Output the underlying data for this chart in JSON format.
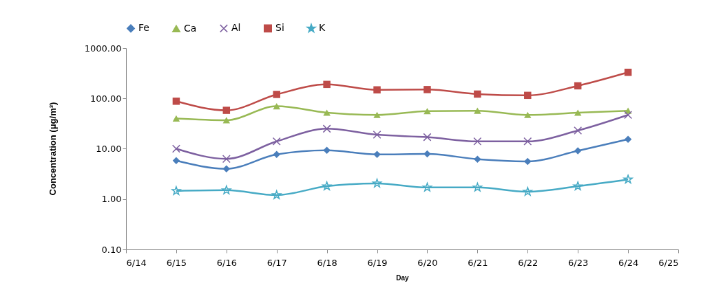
{
  "chart_data": {
    "type": "line",
    "xlabel": "Day",
    "ylabel": "Concentration (μg/m³)",
    "log": true,
    "grid": false,
    "legend": "top",
    "x": [
      "--06-15",
      "--06-16",
      "--06-17",
      "--06-18",
      "--06-19",
      "--06-20",
      "--06-21",
      "--06-22",
      "--06-23",
      "--06-24"
    ],
    "xlim": [
      "--06-14",
      "--06-25"
    ],
    "xticks": [
      {
        "value": "--06-14",
        "label": "6/14"
      },
      {
        "value": "--06-15",
        "label": "6/15"
      },
      {
        "value": "--06-16",
        "label": "6/16"
      },
      {
        "value": "--06-17",
        "label": "6/17"
      },
      {
        "value": "--06-18",
        "label": "6/18"
      },
      {
        "value": "--06-19",
        "label": "6/19"
      },
      {
        "value": "--06-20",
        "label": "6/20"
      },
      {
        "value": "--06-21",
        "label": "6/21"
      },
      {
        "value": "--06-22",
        "label": "6/22"
      },
      {
        "value": "--06-23",
        "label": "6/23"
      },
      {
        "value": "--06-24",
        "label": "6/24"
      },
      {
        "value": "--06-25",
        "label": "6/25"
      }
    ],
    "ylim": [
      0.1,
      1000
    ],
    "yticks": [
      {
        "value": 0.1,
        "label": "0.10"
      },
      {
        "value": 1,
        "label": "1.00"
      },
      {
        "value": 10,
        "label": "10.00"
      },
      {
        "value": 100,
        "label": "100.00"
      },
      {
        "value": 1000,
        "label": "1000.00"
      }
    ],
    "series": [
      {
        "name": "Fe",
        "color": "#4a7ebb",
        "marker": "diamond",
        "values": [
          5.8,
          4.0,
          7.7,
          9.3,
          7.7,
          7.9,
          6.2,
          5.6,
          9.1,
          15.4
        ]
      },
      {
        "name": "Ca",
        "color": "#98b954",
        "marker": "triangle",
        "values": [
          40,
          37,
          70,
          52,
          47,
          56,
          57,
          47,
          52,
          57
        ]
      },
      {
        "name": "Al",
        "color": "#7d60a0",
        "marker": "cross",
        "values": [
          10,
          6.3,
          14,
          25,
          19,
          17,
          14,
          14,
          23,
          47
        ]
      },
      {
        "name": "Si",
        "color": "#be4b48",
        "marker": "square",
        "values": [
          88,
          58,
          120,
          190,
          148,
          150,
          122,
          115,
          178,
          330
        ]
      },
      {
        "name": "K",
        "color": "#46aac5",
        "marker": "star",
        "values": [
          1.45,
          1.5,
          1.2,
          1.8,
          2.05,
          1.7,
          1.7,
          1.4,
          1.8,
          2.45
        ]
      }
    ]
  }
}
